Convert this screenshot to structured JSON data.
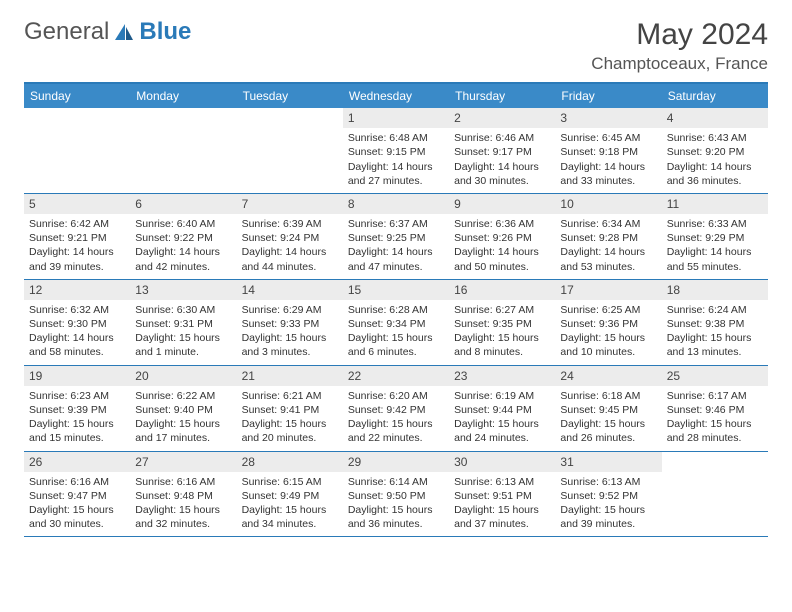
{
  "brand": {
    "part1": "General",
    "part2": "Blue"
  },
  "title": "May 2024",
  "location": "Champtoceaux, France",
  "colors": {
    "header_bg": "#3a8ac8",
    "header_border": "#2a7ab8",
    "daynum_bg": "#ececec",
    "text": "#333333",
    "brand_gray": "#555555",
    "brand_blue": "#2a7ab8"
  },
  "typography": {
    "title_fontsize": 30,
    "location_fontsize": 17,
    "dayheader_fontsize": 12,
    "cell_fontsize": 10.5
  },
  "day_labels": [
    "Sunday",
    "Monday",
    "Tuesday",
    "Wednesday",
    "Thursday",
    "Friday",
    "Saturday"
  ],
  "weeks": [
    [
      {
        "day": "",
        "sunrise": "",
        "sunset": "",
        "daylight": ""
      },
      {
        "day": "",
        "sunrise": "",
        "sunset": "",
        "daylight": ""
      },
      {
        "day": "",
        "sunrise": "",
        "sunset": "",
        "daylight": ""
      },
      {
        "day": "1",
        "sunrise": "Sunrise: 6:48 AM",
        "sunset": "Sunset: 9:15 PM",
        "daylight": "Daylight: 14 hours and 27 minutes."
      },
      {
        "day": "2",
        "sunrise": "Sunrise: 6:46 AM",
        "sunset": "Sunset: 9:17 PM",
        "daylight": "Daylight: 14 hours and 30 minutes."
      },
      {
        "day": "3",
        "sunrise": "Sunrise: 6:45 AM",
        "sunset": "Sunset: 9:18 PM",
        "daylight": "Daylight: 14 hours and 33 minutes."
      },
      {
        "day": "4",
        "sunrise": "Sunrise: 6:43 AM",
        "sunset": "Sunset: 9:20 PM",
        "daylight": "Daylight: 14 hours and 36 minutes."
      }
    ],
    [
      {
        "day": "5",
        "sunrise": "Sunrise: 6:42 AM",
        "sunset": "Sunset: 9:21 PM",
        "daylight": "Daylight: 14 hours and 39 minutes."
      },
      {
        "day": "6",
        "sunrise": "Sunrise: 6:40 AM",
        "sunset": "Sunset: 9:22 PM",
        "daylight": "Daylight: 14 hours and 42 minutes."
      },
      {
        "day": "7",
        "sunrise": "Sunrise: 6:39 AM",
        "sunset": "Sunset: 9:24 PM",
        "daylight": "Daylight: 14 hours and 44 minutes."
      },
      {
        "day": "8",
        "sunrise": "Sunrise: 6:37 AM",
        "sunset": "Sunset: 9:25 PM",
        "daylight": "Daylight: 14 hours and 47 minutes."
      },
      {
        "day": "9",
        "sunrise": "Sunrise: 6:36 AM",
        "sunset": "Sunset: 9:26 PM",
        "daylight": "Daylight: 14 hours and 50 minutes."
      },
      {
        "day": "10",
        "sunrise": "Sunrise: 6:34 AM",
        "sunset": "Sunset: 9:28 PM",
        "daylight": "Daylight: 14 hours and 53 minutes."
      },
      {
        "day": "11",
        "sunrise": "Sunrise: 6:33 AM",
        "sunset": "Sunset: 9:29 PM",
        "daylight": "Daylight: 14 hours and 55 minutes."
      }
    ],
    [
      {
        "day": "12",
        "sunrise": "Sunrise: 6:32 AM",
        "sunset": "Sunset: 9:30 PM",
        "daylight": "Daylight: 14 hours and 58 minutes."
      },
      {
        "day": "13",
        "sunrise": "Sunrise: 6:30 AM",
        "sunset": "Sunset: 9:31 PM",
        "daylight": "Daylight: 15 hours and 1 minute."
      },
      {
        "day": "14",
        "sunrise": "Sunrise: 6:29 AM",
        "sunset": "Sunset: 9:33 PM",
        "daylight": "Daylight: 15 hours and 3 minutes."
      },
      {
        "day": "15",
        "sunrise": "Sunrise: 6:28 AM",
        "sunset": "Sunset: 9:34 PM",
        "daylight": "Daylight: 15 hours and 6 minutes."
      },
      {
        "day": "16",
        "sunrise": "Sunrise: 6:27 AM",
        "sunset": "Sunset: 9:35 PM",
        "daylight": "Daylight: 15 hours and 8 minutes."
      },
      {
        "day": "17",
        "sunrise": "Sunrise: 6:25 AM",
        "sunset": "Sunset: 9:36 PM",
        "daylight": "Daylight: 15 hours and 10 minutes."
      },
      {
        "day": "18",
        "sunrise": "Sunrise: 6:24 AM",
        "sunset": "Sunset: 9:38 PM",
        "daylight": "Daylight: 15 hours and 13 minutes."
      }
    ],
    [
      {
        "day": "19",
        "sunrise": "Sunrise: 6:23 AM",
        "sunset": "Sunset: 9:39 PM",
        "daylight": "Daylight: 15 hours and 15 minutes."
      },
      {
        "day": "20",
        "sunrise": "Sunrise: 6:22 AM",
        "sunset": "Sunset: 9:40 PM",
        "daylight": "Daylight: 15 hours and 17 minutes."
      },
      {
        "day": "21",
        "sunrise": "Sunrise: 6:21 AM",
        "sunset": "Sunset: 9:41 PM",
        "daylight": "Daylight: 15 hours and 20 minutes."
      },
      {
        "day": "22",
        "sunrise": "Sunrise: 6:20 AM",
        "sunset": "Sunset: 9:42 PM",
        "daylight": "Daylight: 15 hours and 22 minutes."
      },
      {
        "day": "23",
        "sunrise": "Sunrise: 6:19 AM",
        "sunset": "Sunset: 9:44 PM",
        "daylight": "Daylight: 15 hours and 24 minutes."
      },
      {
        "day": "24",
        "sunrise": "Sunrise: 6:18 AM",
        "sunset": "Sunset: 9:45 PM",
        "daylight": "Daylight: 15 hours and 26 minutes."
      },
      {
        "day": "25",
        "sunrise": "Sunrise: 6:17 AM",
        "sunset": "Sunset: 9:46 PM",
        "daylight": "Daylight: 15 hours and 28 minutes."
      }
    ],
    [
      {
        "day": "26",
        "sunrise": "Sunrise: 6:16 AM",
        "sunset": "Sunset: 9:47 PM",
        "daylight": "Daylight: 15 hours and 30 minutes."
      },
      {
        "day": "27",
        "sunrise": "Sunrise: 6:16 AM",
        "sunset": "Sunset: 9:48 PM",
        "daylight": "Daylight: 15 hours and 32 minutes."
      },
      {
        "day": "28",
        "sunrise": "Sunrise: 6:15 AM",
        "sunset": "Sunset: 9:49 PM",
        "daylight": "Daylight: 15 hours and 34 minutes."
      },
      {
        "day": "29",
        "sunrise": "Sunrise: 6:14 AM",
        "sunset": "Sunset: 9:50 PM",
        "daylight": "Daylight: 15 hours and 36 minutes."
      },
      {
        "day": "30",
        "sunrise": "Sunrise: 6:13 AM",
        "sunset": "Sunset: 9:51 PM",
        "daylight": "Daylight: 15 hours and 37 minutes."
      },
      {
        "day": "31",
        "sunrise": "Sunrise: 6:13 AM",
        "sunset": "Sunset: 9:52 PM",
        "daylight": "Daylight: 15 hours and 39 minutes."
      },
      {
        "day": "",
        "sunrise": "",
        "sunset": "",
        "daylight": ""
      }
    ]
  ]
}
